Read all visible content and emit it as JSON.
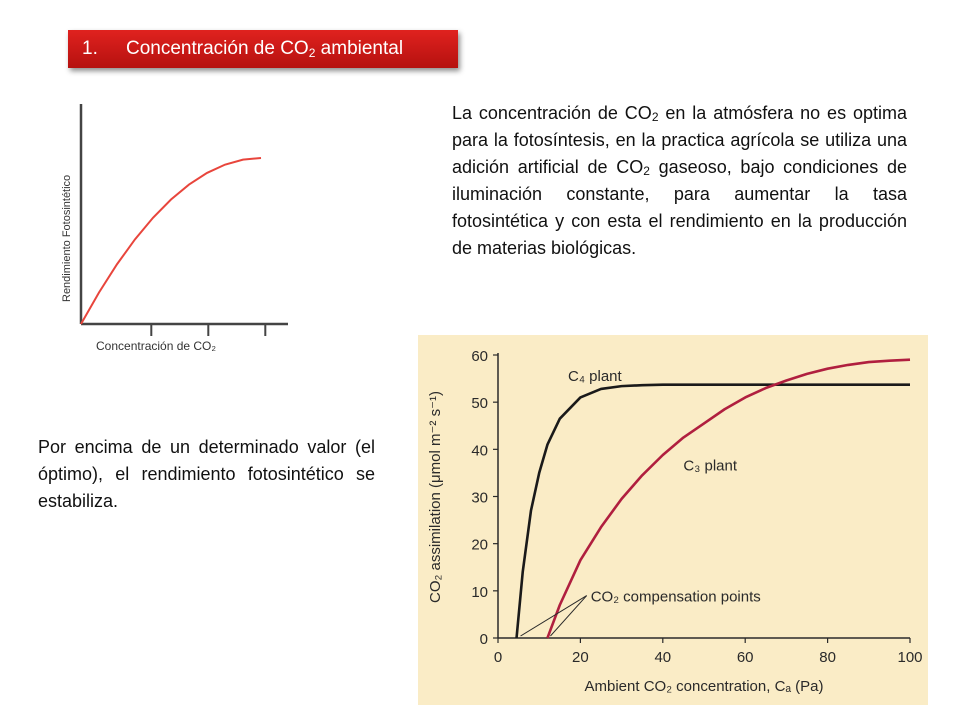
{
  "title": {
    "number": "1.",
    "text_before": "Concentración de CO",
    "sub": "2",
    "text_after": " ambiental"
  },
  "paragraph_right": {
    "p1": "La concentración de CO",
    "s1": "2",
    "p2": " en la atmósfera no es optima para la fotosíntesis, en la practica agrícola se utiliza una adición artificial de CO",
    "s2": "2",
    "p3": " gaseoso, bajo condiciones de iluminación constante, para aumentar la tasa fotosintética y con esta el rendimiento en la producción de materias biológicas."
  },
  "paragraph_left": "Por encima de un determinado valor (el óptimo), el rendimiento fotosintético se estabiliza.",
  "chart_data": [
    {
      "type": "line",
      "title": "",
      "xlabel": "Concentración de CO₂",
      "ylabel": "Rendimiento Fotosintético",
      "grid": false,
      "colors": {
        "curve": "#e8453c",
        "axis": "#444444"
      },
      "series": [
        {
          "x": [
            0,
            0.1,
            0.2,
            0.3,
            0.4,
            0.5,
            0.6,
            0.7,
            0.8,
            0.9,
            1.0
          ],
          "values": [
            0,
            0.19,
            0.36,
            0.51,
            0.64,
            0.75,
            0.84,
            0.91,
            0.96,
            0.99,
            1.0
          ]
        }
      ]
    },
    {
      "type": "line",
      "title": "",
      "xlabel": "Ambient CO₂ concentration, Cₐ (Pa)",
      "ylabel": "CO₂ assimilation (μmol m⁻² s⁻¹)",
      "xlim": [
        0,
        100
      ],
      "ylim": [
        0,
        60
      ],
      "xticks": [
        "0",
        "20",
        "40",
        "60",
        "80",
        "100"
      ],
      "yticks": [
        "0",
        "10",
        "20",
        "30",
        "40",
        "50",
        "60"
      ],
      "grid": false,
      "colors": {
        "background": "#faecc6",
        "c4": "#1a1a1a",
        "c3": "#b01f3f",
        "text": "#2a2a2a"
      },
      "series": [
        {
          "name": "C₄ plant",
          "x": [
            4.5,
            6,
            8,
            10,
            12,
            15,
            20,
            25,
            30,
            35,
            40,
            50,
            60,
            70,
            80,
            90,
            100
          ],
          "values": [
            0,
            14,
            27,
            35,
            41,
            46.5,
            51,
            52.8,
            53.4,
            53.6,
            53.7,
            53.7,
            53.7,
            53.7,
            53.7,
            53.7,
            53.7
          ]
        },
        {
          "name": "C₃ plant",
          "x": [
            12,
            15,
            20,
            25,
            30,
            35,
            40,
            45,
            50,
            55,
            60,
            65,
            70,
            75,
            80,
            85,
            90,
            95,
            100
          ],
          "values": [
            0,
            7,
            16.5,
            23.5,
            29.5,
            34.5,
            38.8,
            42.5,
            45.5,
            48.5,
            51,
            53,
            54.6,
            56,
            57.1,
            57.9,
            58.5,
            58.8,
            59
          ]
        }
      ],
      "annotation": "CO₂ compensation points"
    }
  ]
}
